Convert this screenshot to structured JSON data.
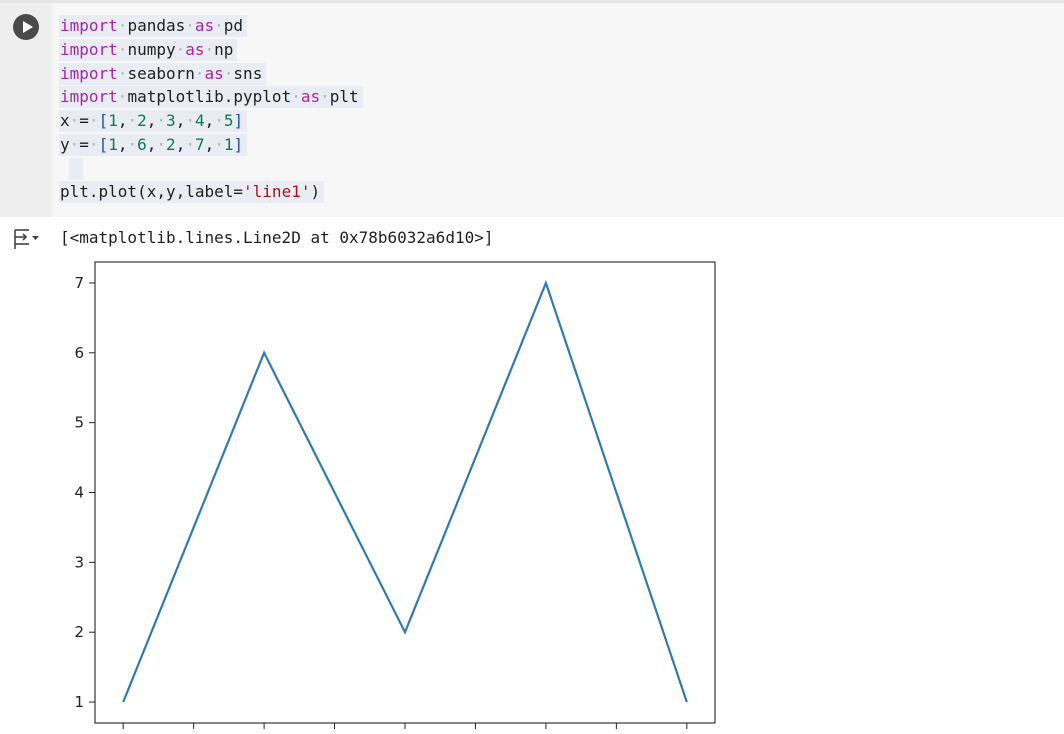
{
  "code_lines": [
    {
      "kind": "import",
      "keyword": "import",
      "module": "pandas",
      "as": "as",
      "alias": "pd"
    },
    {
      "kind": "import",
      "keyword": "import",
      "module": "numpy",
      "as": "as",
      "alias": "np"
    },
    {
      "kind": "import",
      "keyword": "import",
      "module": "seaborn",
      "as": "as",
      "alias": "sns"
    },
    {
      "kind": "import",
      "keyword": "import",
      "module": "matplotlib.pyplot",
      "as": "as",
      "alias": "plt"
    },
    {
      "kind": "assign",
      "name": "x",
      "values": [
        "1",
        "2",
        "3",
        "4",
        "5"
      ]
    },
    {
      "kind": "assign",
      "name": "y",
      "values": [
        "1",
        "6",
        "2",
        "7",
        "1"
      ]
    },
    {
      "kind": "blank"
    },
    {
      "kind": "call",
      "func": "plt.plot",
      "args": "x,y,label=",
      "str": "'line1'"
    }
  ],
  "output": {
    "repr": "[<matplotlib.lines.Line2D at 0x78b6032a6d10>]"
  },
  "chart_data": {
    "type": "line",
    "x": [
      1,
      2,
      3,
      4,
      5
    ],
    "series": [
      {
        "values": [
          1,
          6,
          2,
          7,
          1
        ],
        "color": "#2f7ab5"
      }
    ],
    "xlim": [
      0.8,
      5.2
    ],
    "ylim": [
      0.7,
      7.3
    ],
    "yticks": [
      1,
      2,
      3,
      4,
      5,
      6,
      7
    ],
    "xticks": [
      1.0,
      1.5,
      2.0,
      2.5,
      3.0,
      3.5,
      4.0,
      4.5,
      5.0
    ],
    "grid": false
  }
}
